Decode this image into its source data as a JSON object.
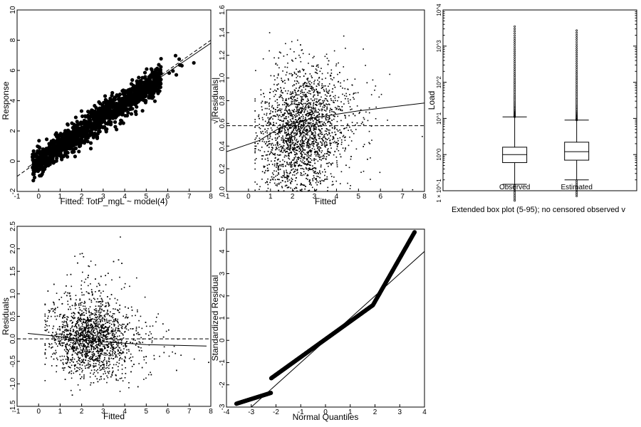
{
  "chart_data": [
    {
      "id": "p1",
      "type": "scatter",
      "xlabel": "Fitted: TotP_mgL ~ model(4)",
      "ylabel": "Response",
      "xlim": [
        -1,
        8
      ],
      "ylim": [
        -2,
        10
      ],
      "xticks": [
        "-1",
        "0",
        "1",
        "2",
        "3",
        "4",
        "5",
        "6",
        "7",
        "8"
      ],
      "yticks": [
        "-2",
        "0",
        "2",
        "4",
        "6",
        "8",
        "10"
      ],
      "marker": "filled-circle",
      "lines": [
        {
          "name": "",
          "style": "dashed",
          "points": [
            [
              -1,
              -1
            ],
            [
              8,
              8
            ]
          ]
        },
        {
          "name": "",
          "style": "solid",
          "points": [
            [
              -0.5,
              -0.4
            ],
            [
              8,
              7.8
            ]
          ]
        }
      ],
      "points_summary": "dense band along 1:1 line, fitted 0–8"
    },
    {
      "id": "p2",
      "type": "scatter",
      "xlabel": "Fitted",
      "ylabel": "√|Residuals|",
      "xlim": [
        -1,
        8
      ],
      "ylim": [
        0,
        1.6
      ],
      "xticks": [
        "-1",
        "0",
        "1",
        "2",
        "3",
        "4",
        "5",
        "6",
        "7",
        "8"
      ],
      "yticks": [
        "0.0",
        "0.2",
        "0.4",
        "0.6",
        "0.8",
        "1.0",
        "1.2",
        "1.4",
        "1.6"
      ],
      "marker": "small-dot",
      "lines": [
        {
          "name": "",
          "style": "dashed",
          "points": [
            [
              -1,
              0.58
            ],
            [
              8,
              0.58
            ]
          ]
        },
        {
          "name": "",
          "style": "solid",
          "points": [
            [
              -1,
              0.35
            ],
            [
              0.5,
              0.45
            ],
            [
              1.5,
              0.57
            ],
            [
              3,
              0.65
            ],
            [
              5,
              0.71
            ],
            [
              8,
              0.78
            ]
          ]
        }
      ]
    },
    {
      "id": "p3",
      "type": "box",
      "xlabel": "",
      "ylabel": "Load",
      "ylim_log10": [
        -1,
        4
      ],
      "ytick_labels": [
        "1 × 10^-1",
        "10^0",
        "10^1",
        "10^2",
        "10^3",
        "10^4"
      ],
      "categories": [
        "Observed",
        "Estimated"
      ],
      "boxes": [
        {
          "name": "Observed",
          "p5": 0.15,
          "q1": 0.6,
          "median": 1.0,
          "q3": 1.6,
          "p95": 11,
          "max": 3500
        },
        {
          "name": "Estimated",
          "p5": 0.2,
          "q1": 0.7,
          "median": 1.2,
          "q3": 2.2,
          "p95": 9,
          "max": 2700
        }
      ],
      "caption": "Extended box plot (5-95); no censored observed v"
    },
    {
      "id": "p4",
      "type": "scatter",
      "xlabel": "Fitted",
      "ylabel": "Residuals",
      "xlim": [
        -1,
        8
      ],
      "ylim": [
        -1.5,
        2.5
      ],
      "xticks": [
        "-1",
        "0",
        "1",
        "2",
        "3",
        "4",
        "5",
        "6",
        "7",
        "8"
      ],
      "yticks": [
        "-1.5",
        "-1.0",
        "-0.5",
        "0.0",
        "0.5",
        "1.0",
        "1.5",
        "2.0",
        "2.5"
      ],
      "marker": "small-dot",
      "lines": [
        {
          "name": "",
          "style": "dashed",
          "points": [
            [
              -1,
              0
            ],
            [
              8,
              0
            ]
          ]
        },
        {
          "name": "",
          "style": "solid",
          "points": [
            [
              -0.5,
              0.12
            ],
            [
              1,
              0.05
            ],
            [
              2.5,
              -0.05
            ],
            [
              5,
              -0.13
            ],
            [
              7.8,
              -0.16
            ]
          ]
        }
      ]
    },
    {
      "id": "p5",
      "type": "scatter",
      "xlabel": "Normal Quantiles",
      "ylabel": "Standardized Residual",
      "xlim": [
        -4,
        4
      ],
      "ylim": [
        -3,
        5
      ],
      "xticks": [
        "-4",
        "-3",
        "-2",
        "-1",
        "0",
        "1",
        "2",
        "3",
        "4"
      ],
      "yticks": [
        "-3",
        "-2",
        "-1",
        "0",
        "1",
        "2",
        "3",
        "4",
        "5"
      ],
      "marker": "filled-circle",
      "lines": [
        {
          "name": "",
          "style": "solid",
          "points": [
            [
              -3,
              -3
            ],
            [
              4,
              4
            ]
          ]
        }
      ],
      "qq_x_range": [
        -3.6,
        3.6
      ]
    }
  ]
}
